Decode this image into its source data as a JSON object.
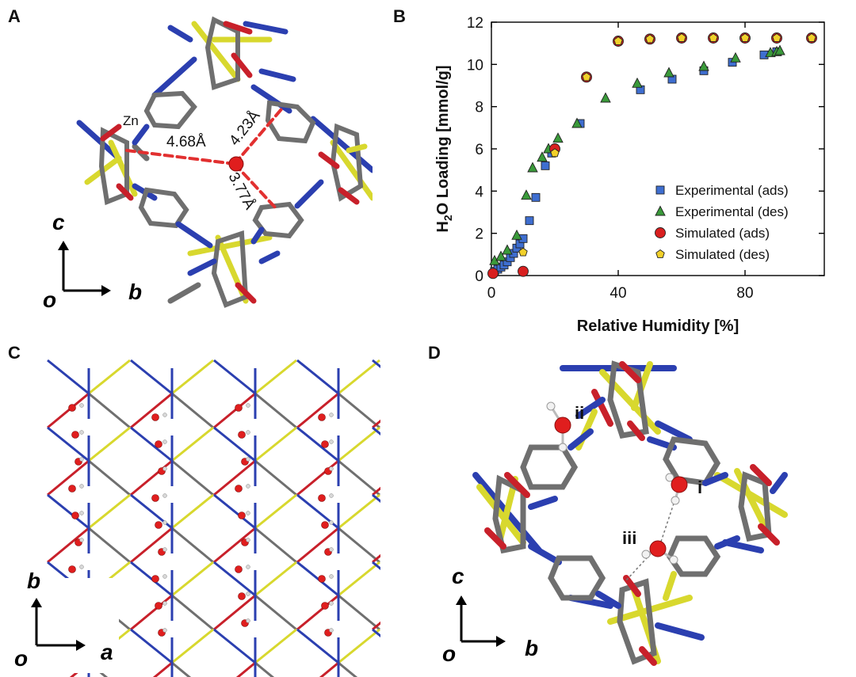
{
  "panels": {
    "a": {
      "letter": "A",
      "zn_label": "Zn",
      "distances": [
        "4.68Å",
        "4.23Å",
        "3.77Å"
      ],
      "axes": {
        "up": "c",
        "right": "b",
        "origin": "o"
      }
    },
    "b": {
      "letter": "B"
    },
    "c": {
      "letter": "C",
      "axes": {
        "up": "b",
        "right": "a",
        "origin": "o"
      }
    },
    "d": {
      "letter": "D",
      "sites": [
        "i",
        "ii",
        "iii"
      ],
      "axes": {
        "up": "c",
        "right": "b",
        "origin": "o"
      }
    }
  },
  "colors": {
    "zn": "#d8d82e",
    "nitrogen": "#2b3fb0",
    "oxygen": "#c8202a",
    "carbon": "#6f6f6f",
    "hydrogen": "#d8d8d8",
    "water_o": "#e01e1e",
    "dash": "#e23030",
    "exp_ads": "#3e6ed0",
    "exp_des": "#3a9a3a",
    "sim_ads": "#d81f1f",
    "sim_des": "#f2d02a"
  },
  "chart_data": {
    "type": "scatter",
    "xlabel": "Relative Humidity [%]",
    "ylabel": "H2O Loading [mmol/g]",
    "ylabel_parts": {
      "pre": "H",
      "sub": "2",
      "post": "O Loading [mmol/g]"
    },
    "xlim": [
      0,
      105
    ],
    "ylim": [
      0,
      12
    ],
    "xticks": [
      0,
      40,
      80
    ],
    "yticks": [
      0,
      2,
      4,
      6,
      8,
      10,
      12
    ],
    "grid": false,
    "legend_position": "bottom-right",
    "series": [
      {
        "name": "Experimental (ads)",
        "marker": "square",
        "color": "#3e6ed0",
        "points": [
          [
            1,
            0.2
          ],
          [
            2,
            0.3
          ],
          [
            3,
            0.4
          ],
          [
            4,
            0.5
          ],
          [
            5,
            0.65
          ],
          [
            6,
            0.85
          ],
          [
            7,
            1.05
          ],
          [
            8,
            1.3
          ],
          [
            9,
            1.5
          ],
          [
            10,
            1.75
          ],
          [
            12,
            2.6
          ],
          [
            14,
            3.7
          ],
          [
            17,
            5.2
          ],
          [
            19,
            5.8
          ],
          [
            28,
            7.2
          ],
          [
            47,
            8.8
          ],
          [
            57,
            9.3
          ],
          [
            67,
            9.7
          ],
          [
            76,
            10.1
          ],
          [
            86,
            10.45
          ],
          [
            90,
            10.6
          ]
        ]
      },
      {
        "name": "Experimental (des)",
        "marker": "triangle",
        "color": "#3a9a3a",
        "points": [
          [
            1,
            0.7
          ],
          [
            3,
            0.9
          ],
          [
            5,
            1.2
          ],
          [
            8,
            1.9
          ],
          [
            11,
            3.8
          ],
          [
            13,
            5.1
          ],
          [
            16,
            5.6
          ],
          [
            18,
            6.0
          ],
          [
            21,
            6.5
          ],
          [
            27,
            7.2
          ],
          [
            36,
            8.4
          ],
          [
            46,
            9.1
          ],
          [
            56,
            9.6
          ],
          [
            67,
            9.9
          ],
          [
            77,
            10.3
          ],
          [
            88,
            10.55
          ],
          [
            90,
            10.6
          ],
          [
            91,
            10.65
          ]
        ]
      },
      {
        "name": "Simulated (ads)",
        "marker": "circle",
        "color": "#d81f1f",
        "points": [
          [
            0.5,
            0.1
          ],
          [
            10,
            0.2
          ],
          [
            20,
            6.0
          ],
          [
            30,
            9.4
          ],
          [
            40,
            11.1
          ],
          [
            50,
            11.2
          ],
          [
            60,
            11.25
          ],
          [
            70,
            11.25
          ],
          [
            80,
            11.25
          ],
          [
            90,
            11.25
          ],
          [
            101,
            11.25
          ]
        ]
      },
      {
        "name": "Simulated (des)",
        "marker": "pentagon",
        "color": "#f2d02a",
        "points": [
          [
            10,
            1.1
          ],
          [
            20,
            5.8
          ],
          [
            30,
            9.4
          ],
          [
            40,
            11.1
          ],
          [
            50,
            11.2
          ],
          [
            60,
            11.25
          ],
          [
            70,
            11.25
          ],
          [
            80,
            11.25
          ],
          [
            90,
            11.25
          ],
          [
            101,
            11.25
          ]
        ]
      }
    ]
  }
}
